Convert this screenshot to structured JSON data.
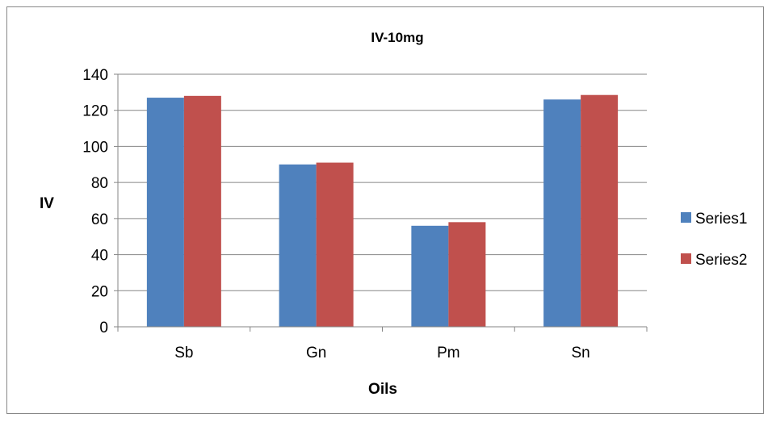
{
  "chart_data": {
    "type": "bar",
    "title": "IV-10mg",
    "xlabel": "Oils",
    "ylabel": "IV",
    "categories": [
      "Sb",
      "Gn",
      "Pm",
      "Sn"
    ],
    "series": [
      {
        "name": "Series1",
        "color": "#4F81BD",
        "values": [
          127,
          90,
          56,
          126
        ]
      },
      {
        "name": "Series2",
        "color": "#C0504D",
        "values": [
          128,
          91,
          58,
          128.5
        ]
      }
    ],
    "ylim": [
      0,
      140
    ],
    "yticks": [
      0,
      20,
      40,
      60,
      80,
      100,
      120,
      140
    ],
    "grid": true,
    "legend_position": "right"
  }
}
